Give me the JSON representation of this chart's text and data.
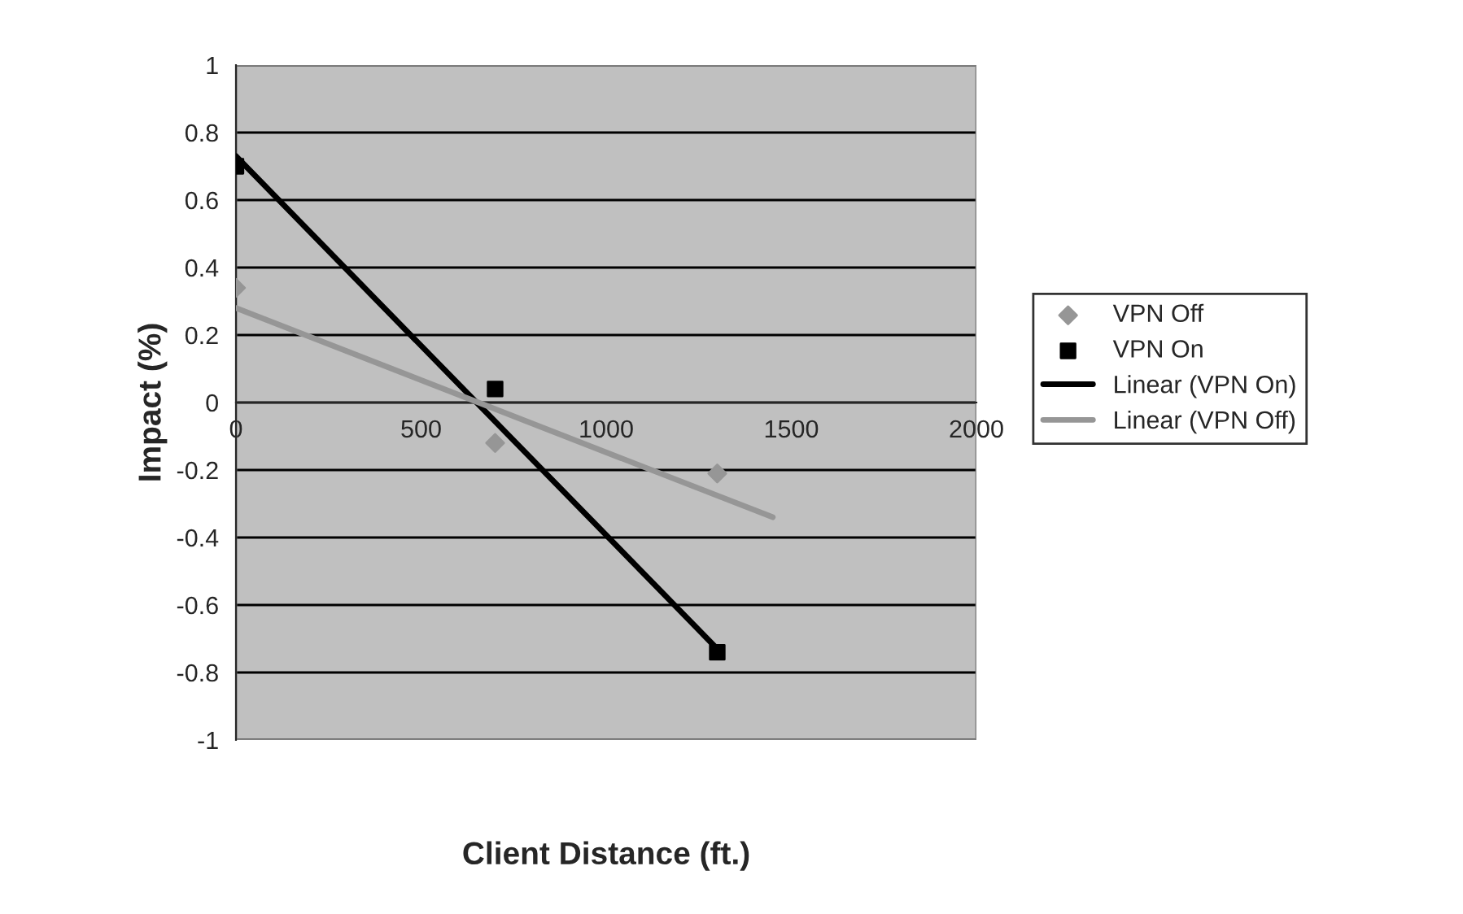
{
  "chart_data": {
    "type": "scatter",
    "xlabel": "Client Distance (ft.)",
    "ylabel": "Impact (%)",
    "series": [
      {
        "name": "VPN Off",
        "marker": "diamond",
        "color": "#969696",
        "x": [
          0,
          700,
          1300
        ],
        "values": [
          0.34,
          -0.12,
          -0.21
        ]
      },
      {
        "name": "VPN On",
        "marker": "square",
        "color": "#000000",
        "x": [
          0,
          700,
          1300
        ],
        "values": [
          0.7,
          0.04,
          -0.74
        ]
      },
      {
        "name": "Linear (VPN On)",
        "type": "line",
        "marker": "none",
        "color": "#000000",
        "x": [
          0,
          1300
        ],
        "values": [
          0.73,
          -0.73
        ]
      },
      {
        "name": "Linear (VPN Off)",
        "type": "line",
        "marker": "none",
        "color": "#969696",
        "x": [
          0,
          1450
        ],
        "values": [
          0.28,
          -0.34
        ]
      }
    ],
    "xlim": [
      0,
      2000
    ],
    "xticks": [
      0,
      500,
      1000,
      1500,
      2000
    ],
    "ylim": [
      -1,
      1
    ],
    "yticks": [
      -1,
      -0.8,
      -0.6,
      -0.4,
      -0.2,
      0,
      0.2,
      0.4,
      0.6,
      0.8,
      1
    ],
    "grid": "y",
    "legend": "right"
  }
}
